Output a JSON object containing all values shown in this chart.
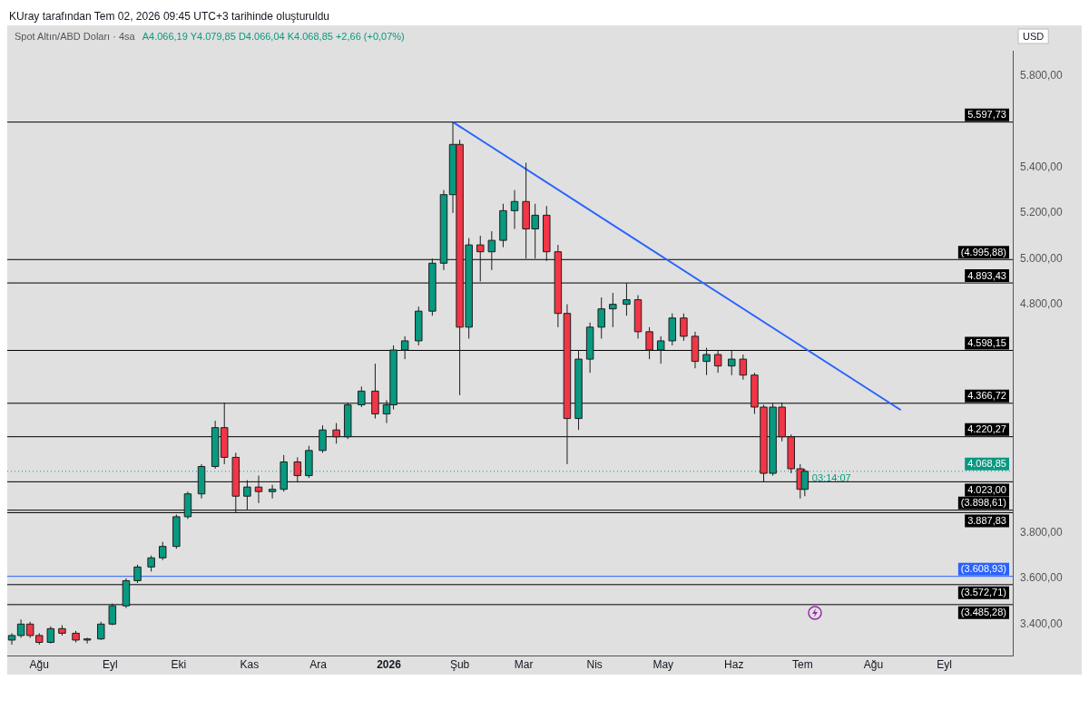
{
  "chart_data": {
    "type": "candlestick",
    "title": "Spot Altın/ABD Doları · 4sa",
    "subtitle": "A4.066,19 Y4.079,85 D4.066,04 K4.068,85 +2,66 (+0,07%)",
    "ylabel": "USD",
    "annotations": [
      "KUray tarafından Tem 02, 2026 09:45 UTC+3 tarihinde oluşturuldu",
      {
        "text": "03:14:07",
        "x": "2026-07-02",
        "y": 4068.85
      }
    ],
    "x": [
      "2025-07-20",
      "2025-07-24",
      "2025-07-28",
      "2025-08-01",
      "2025-08-06",
      "2025-08-11",
      "2025-08-17",
      "2025-08-22",
      "2025-08-28",
      "2025-09-02",
      "2025-09-08",
      "2025-09-13",
      "2025-09-19",
      "2025-09-24",
      "2025-09-30",
      "2025-10-05",
      "2025-10-11",
      "2025-10-17",
      "2025-10-21",
      "2025-10-26",
      "2025-10-31",
      "2025-11-05",
      "2025-11-11",
      "2025-11-16",
      "2025-11-22",
      "2025-11-27",
      "2025-12-03",
      "2025-12-09",
      "2025-12-14",
      "2025-12-20",
      "2025-12-26",
      "2025-12-31",
      "2026-01-03",
      "2026-01-08",
      "2026-01-14",
      "2026-01-20",
      "2026-01-25",
      "2026-01-29",
      "2026-02-01",
      "2026-02-05",
      "2026-02-10",
      "2026-02-15",
      "2026-02-20",
      "2026-02-25",
      "2026-03-02",
      "2026-03-06",
      "2026-03-11",
      "2026-03-16",
      "2026-03-20",
      "2026-03-25",
      "2026-03-30",
      "2026-04-04",
      "2026-04-09",
      "2026-04-15",
      "2026-04-20",
      "2026-04-25",
      "2026-04-30",
      "2026-05-05",
      "2026-05-10",
      "2026-05-15",
      "2026-05-20",
      "2026-05-25",
      "2026-05-31",
      "2026-06-05",
      "2026-06-10",
      "2026-06-14",
      "2026-06-18",
      "2026-06-22",
      "2026-06-26",
      "2026-06-30",
      "2026-07-02"
    ],
    "ohlc": [
      [
        3330,
        3360,
        3310,
        3350
      ],
      [
        3350,
        3420,
        3340,
        3400
      ],
      [
        3400,
        3410,
        3340,
        3350
      ],
      [
        3350,
        3360,
        3310,
        3320
      ],
      [
        3320,
        3390,
        3315,
        3380
      ],
      [
        3380,
        3395,
        3350,
        3360
      ],
      [
        3360,
        3370,
        3320,
        3330
      ],
      [
        3330,
        3340,
        3315,
        3335
      ],
      [
        3335,
        3410,
        3330,
        3400
      ],
      [
        3400,
        3490,
        3395,
        3480
      ],
      [
        3480,
        3600,
        3470,
        3590
      ],
      [
        3590,
        3660,
        3580,
        3650
      ],
      [
        3650,
        3700,
        3630,
        3690
      ],
      [
        3690,
        3760,
        3680,
        3740
      ],
      [
        3740,
        3880,
        3730,
        3870
      ],
      [
        3870,
        3980,
        3860,
        3970
      ],
      [
        3970,
        4100,
        3950,
        4090
      ],
      [
        4090,
        4290,
        4080,
        4260
      ],
      [
        4260,
        4370,
        4100,
        4130
      ],
      [
        4130,
        4150,
        3887.83,
        3960
      ],
      [
        3960,
        4030,
        3900,
        4000
      ],
      [
        4000,
        4050,
        3930,
        3980
      ],
      [
        3980,
        4010,
        3950,
        3990
      ],
      [
        3990,
        4140,
        3980,
        4110
      ],
      [
        4110,
        4130,
        4020,
        4050
      ],
      [
        4050,
        4180,
        4040,
        4160
      ],
      [
        4160,
        4270,
        4150,
        4250
      ],
      [
        4250,
        4280,
        4190,
        4220
      ],
      [
        4220,
        4370,
        4210,
        4360
      ],
      [
        4360,
        4440,
        4350,
        4420
      ],
      [
        4420,
        4540,
        4300,
        4320
      ],
      [
        4320,
        4380,
        4280,
        4360
      ],
      [
        4360,
        4620,
        4340,
        4600
      ],
      [
        4600,
        4660,
        4560,
        4640
      ],
      [
        4640,
        4790,
        4620,
        4770
      ],
      [
        4770,
        5000,
        4750,
        4980
      ],
      [
        4980,
        5300,
        4950,
        5280
      ],
      [
        5280,
        5597.73,
        5200,
        5500
      ],
      [
        5500,
        5520,
        4402,
        4700
      ],
      [
        4700,
        5090,
        4650,
        5060
      ],
      [
        5060,
        5100,
        4900,
        5030
      ],
      [
        5030,
        5120,
        4950,
        5080
      ],
      [
        5080,
        5240,
        5050,
        5210
      ],
      [
        5210,
        5300,
        5130,
        5250
      ],
      [
        5250,
        5420,
        5000,
        5130
      ],
      [
        5130,
        5240,
        5000,
        5190
      ],
      [
        5190,
        5230,
        4990,
        5030
      ],
      [
        5030,
        5060,
        4700,
        4760
      ],
      [
        4760,
        4800,
        4100,
        4300
      ],
      [
        4300,
        4600,
        4250,
        4560
      ],
      [
        4560,
        4720,
        4500,
        4700
      ],
      [
        4700,
        4830,
        4650,
        4780
      ],
      [
        4780,
        4850,
        4700,
        4800
      ],
      [
        4800,
        4893.43,
        4750,
        4820
      ],
      [
        4820,
        4840,
        4650,
        4680
      ],
      [
        4680,
        4700,
        4560,
        4600
      ],
      [
        4600,
        4660,
        4540,
        4640
      ],
      [
        4640,
        4760,
        4620,
        4740
      ],
      [
        4740,
        4760,
        4640,
        4660
      ],
      [
        4660,
        4680,
        4520,
        4550
      ],
      [
        4550,
        4610,
        4490,
        4580
      ],
      [
        4580,
        4600,
        4500,
        4530
      ],
      [
        4530,
        4598.15,
        4490,
        4560
      ],
      [
        4560,
        4580,
        4470,
        4490
      ],
      [
        4490,
        4500,
        4320,
        4350
      ],
      [
        4350,
        4360,
        4023,
        4060
      ],
      [
        4060,
        4366.72,
        4050,
        4350
      ],
      [
        4350,
        4370,
        4200,
        4220
      ],
      [
        4220,
        4230,
        4060,
        4080
      ],
      [
        4080,
        4100,
        3950,
        3990
      ],
      [
        3990,
        4079.85,
        3960,
        4068.85
      ]
    ],
    "series": [
      {
        "type": "line",
        "color": "#2962ff",
        "x": [
          "2026-01-29",
          "2026-08-13"
        ],
        "values": [
          5597.73,
          4337
        ]
      }
    ],
    "xlim": [
      "2025-07-18",
      "2026-10-01"
    ],
    "xticks": [
      {
        "value": "2025-08-01",
        "label": "Ağu"
      },
      {
        "value": "2025-09-01",
        "label": "Eyl"
      },
      {
        "value": "2025-10-01",
        "label": "Eki"
      },
      {
        "value": "2025-11-01",
        "label": "Kas"
      },
      {
        "value": "2025-12-01",
        "label": "Ara"
      },
      {
        "value": "2026-01-01",
        "label": "2026"
      },
      {
        "value": "2026-02-01",
        "label": "Şub"
      },
      {
        "value": "2026-03-01",
        "label": "Mar"
      },
      {
        "value": "2026-04-01",
        "label": "Nis"
      },
      {
        "value": "2026-05-01",
        "label": "May"
      },
      {
        "value": "2026-06-01",
        "label": "Haz"
      },
      {
        "value": "2026-07-01",
        "label": "Tem"
      },
      {
        "value": "2026-08-01",
        "label": "Ağu"
      },
      {
        "value": "2026-09-01",
        "label": "Eyl"
      }
    ],
    "ylim": [
      3260,
      5910
    ],
    "yticks": [
      {
        "value": 3400,
        "label": "3.400,00"
      },
      {
        "value": 3600,
        "label": "3.600,00"
      },
      {
        "value": 3800,
        "label": "3.800,00"
      },
      {
        "value": 4800,
        "label": "4.800,00"
      },
      {
        "value": 5000,
        "label": "5.000,00"
      },
      {
        "value": 5200,
        "label": "5.200,00"
      },
      {
        "value": 5400,
        "label": "5.400,00"
      },
      {
        "value": 5800,
        "label": "5.800,00"
      }
    ],
    "ref_lines": [
      {
        "axis": "y",
        "value": 5597.73,
        "label": "5.597,73",
        "color": "#000000"
      },
      {
        "axis": "y",
        "value": 4995.88,
        "label": "(4.995,88)",
        "color": "#000000"
      },
      {
        "axis": "y",
        "value": 4893.43,
        "label": "4.893,43",
        "color": "#000000"
      },
      {
        "axis": "y",
        "value": 4598.15,
        "label": "4.598,15",
        "color": "#000000"
      },
      {
        "axis": "y",
        "value": 4366.72,
        "label": "4.366,72",
        "color": "#000000"
      },
      {
        "axis": "y",
        "value": 4220.27,
        "label": "4.220,27",
        "color": "#000000"
      },
      {
        "axis": "y",
        "value": 4068.85,
        "label": "4.068,85",
        "color": "#089981",
        "line_style": "dotted"
      },
      {
        "axis": "y",
        "value": 4023,
        "label": "4.023,00",
        "color": "#000000"
      },
      {
        "axis": "y",
        "value": 3898.61,
        "label": "(3.898,61)",
        "color": "#000000"
      },
      {
        "axis": "y",
        "value": 3887.83,
        "label": "3.887,83",
        "color": "#000000"
      },
      {
        "axis": "y",
        "value": 3608.93,
        "label": "(3.608,93)",
        "color": "#2962ff"
      },
      {
        "axis": "y",
        "value": 3572.71,
        "label": "(3.572,71)",
        "color": "#000000"
      },
      {
        "axis": "y",
        "value": 3485.28,
        "label": "(3.485,28)",
        "color": "#000000"
      }
    ],
    "grid": false,
    "legend": false
  }
}
